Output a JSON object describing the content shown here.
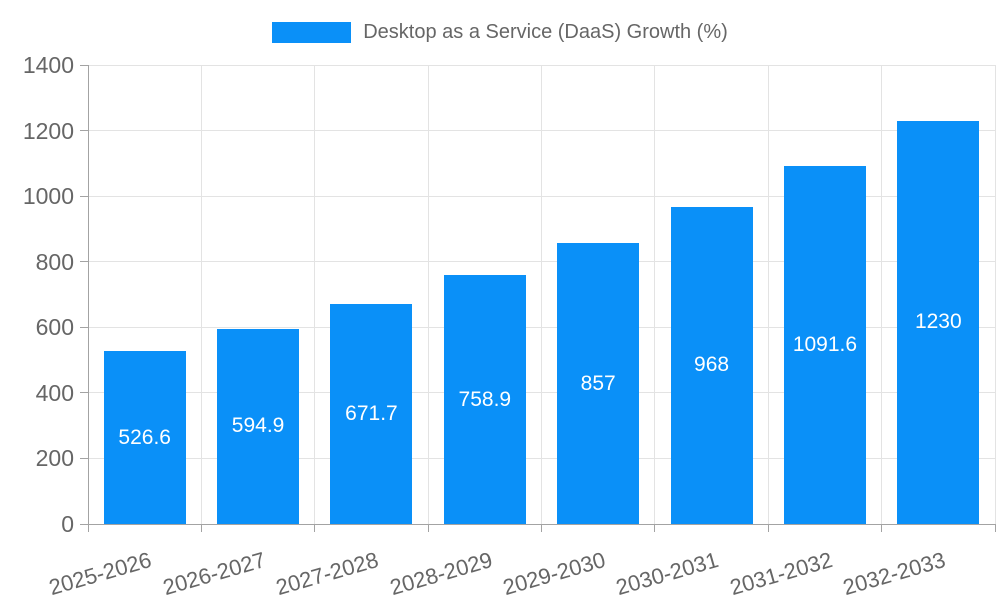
{
  "chart_data": {
    "type": "bar",
    "title": "Desktop as a Service (DaaS) Growth (%)",
    "legend": {
      "label": "Desktop as a Service (DaaS) Growth (%)",
      "position": "top"
    },
    "categories": [
      "2025-2026",
      "2026-2027",
      "2027-2028",
      "2028-2029",
      "2029-2030",
      "2030-2031",
      "2031-2032",
      "2032-2033"
    ],
    "values": [
      526.6,
      594.9,
      671.7,
      758.9,
      857,
      968,
      1091.6,
      1230
    ],
    "value_labels": [
      "526.6",
      "594.9",
      "671.7",
      "758.9",
      "857",
      "968",
      "1091.6",
      "1230"
    ],
    "xlabel": "",
    "ylabel": "",
    "ylim": [
      0,
      1400
    ],
    "ytick_step": 200,
    "yticks": [
      "0",
      "200",
      "400",
      "600",
      "800",
      "1000",
      "1200",
      "1400"
    ],
    "grid": true,
    "x_label_rotation_deg": -16,
    "colors": {
      "bar": "#0a90f8",
      "value_label": "#ffffff",
      "axis_text": "#666666",
      "grid_line": "#e3e3e3",
      "axis_line": "#a3a3a3",
      "background": "#ffffff"
    }
  }
}
